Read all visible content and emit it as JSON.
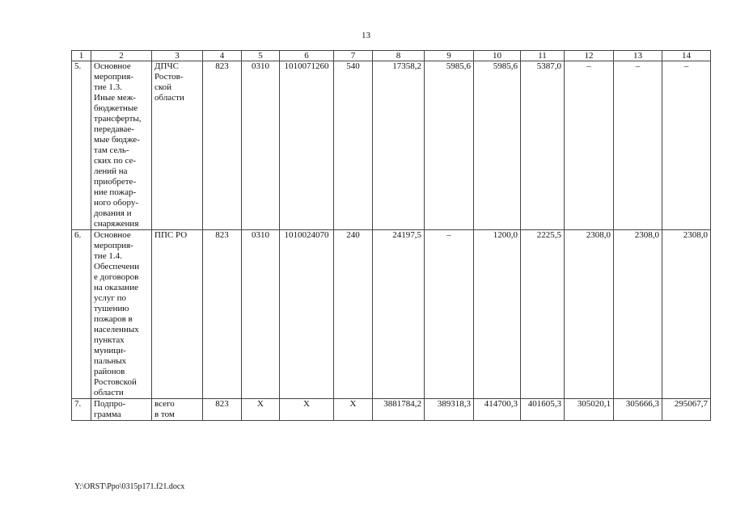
{
  "page_number": "13",
  "table": {
    "header": [
      "1",
      "2",
      "3",
      "4",
      "5",
      "6",
      "7",
      "8",
      "9",
      "10",
      "11",
      "12",
      "13",
      "14"
    ],
    "rows": [
      {
        "no": "5.",
        "name": "Основное\nмероприя-\nтие 1.3.\nИные меж-\nбюджетные\nтрансферты,\nпередавае-\nмые бюдже-\nтам сель-\nских по се-\nлений на\nприобрете-\nние пожар-\nного обору-\nдования и\nснаряжения",
        "executor": "ДПЧС\nРостов-\nской\nобласти",
        "grbs": "823",
        "rzpr": "0310",
        "csr": "1010071260",
        "vr": "540",
        "total": "17358,2",
        "y2014": "5985,6",
        "y2015": "5985,6",
        "y2016": "5387,0",
        "y2017": "–",
        "y2018": "–",
        "y2019": "–"
      },
      {
        "no": "6.",
        "name": "Основное\nмероприя-\nтие 1.4.\nОбеспечени\nе договоров\nна оказание\nуслуг по\nтушению\nпожаров в\nнаселенных\nпунктах\nмуници-\nпальных\nрайонов\nРостовской\nобласти",
        "executor": "ППС РО",
        "grbs": "823",
        "rzpr": "0310",
        "csr": "1010024070",
        "vr": "240",
        "total": "24197,5",
        "y2014": "–",
        "y2015": "1200,0",
        "y2016": "2225,5",
        "y2017": "2308,0",
        "y2018": "2308,0",
        "y2019": "2308,0"
      },
      {
        "no": "7.",
        "name": "Подпро-\nграмма",
        "executor": "всего\nв том",
        "grbs": "823",
        "rzpr": "Х",
        "csr": "Х",
        "vr": "Х",
        "total": "3881784,2",
        "y2014": "389318,3",
        "y2015": "414700,3",
        "y2016": "401605,3",
        "y2017": "305020,1",
        "y2018": "305666,3",
        "y2019": "295067,7"
      }
    ]
  },
  "footer_path": "Y:\\ORST\\Ppo\\0315p171.f21.docx"
}
